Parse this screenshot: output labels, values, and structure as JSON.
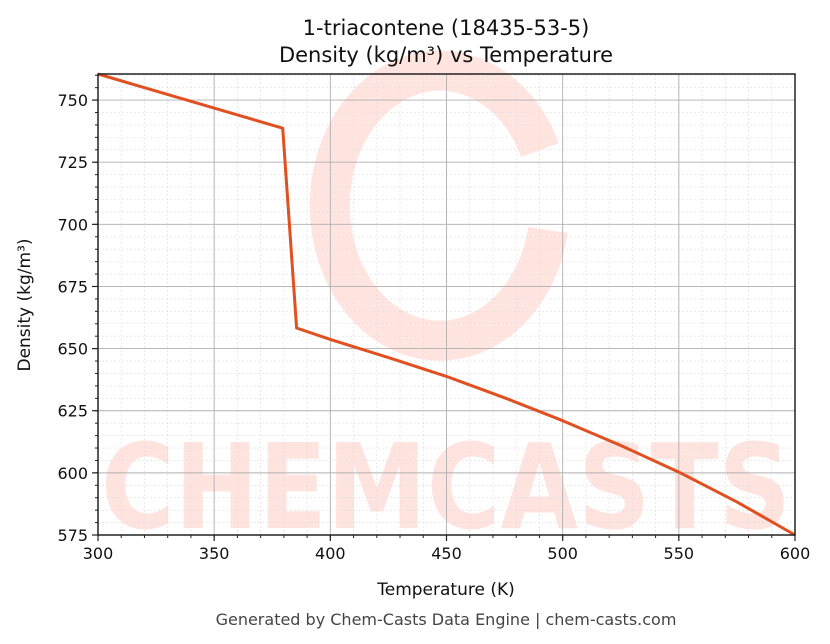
{
  "chart_data": {
    "type": "line",
    "title": "1-triacontene (18435-53-5)",
    "subtitle": "Density (kg/m³) vs Temperature",
    "xlabel": "Temperature (K)",
    "ylabel": "Density (kg/m³)",
    "xlim": [
      300,
      600
    ],
    "ylim": [
      575,
      760.5
    ],
    "xticks": [
      300,
      350,
      400,
      450,
      500,
      550,
      600
    ],
    "yticks": [
      575,
      600,
      625,
      650,
      675,
      700,
      725,
      750
    ],
    "grid": true,
    "series": [
      {
        "name": "Density",
        "color": "#e05020",
        "x": [
          300,
          379.5,
          385.5,
          400,
          425,
          450,
          475,
          500,
          525,
          550,
          575,
          600
        ],
        "y": [
          760.5,
          738.7,
          658.3,
          653.7,
          646.4,
          638.8,
          630.2,
          621.0,
          611.0,
          600.3,
          588.3,
          575
        ]
      }
    ],
    "watermark": "CHEMCASTS",
    "footer": "Generated by Chem-Casts Data Engine | chem-casts.com"
  }
}
